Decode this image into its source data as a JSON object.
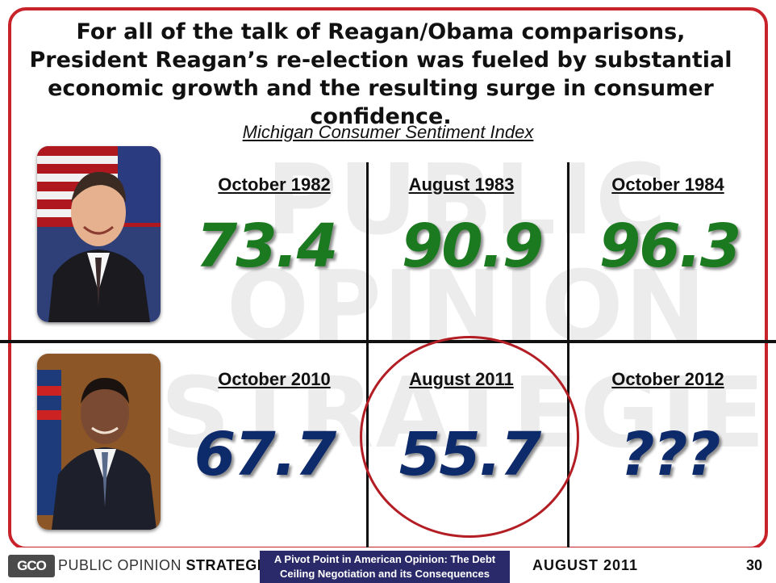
{
  "slide": {
    "headline": "For all of the talk of Reagan/Obama comparisons, President Reagan’s re-election was fueled by substantial economic growth and the resulting surge in consumer confidence.",
    "subtitle": "Michigan Consumer Sentiment Index",
    "watermark": "PUBLIC OPINION STRATEGIES"
  },
  "reagan": {
    "cells": [
      {
        "label": "October 1982",
        "value": "73.4"
      },
      {
        "label": "August 1983",
        "value": "90.9"
      },
      {
        "label": "October 1984",
        "value": "96.3"
      }
    ]
  },
  "obama": {
    "cells": [
      {
        "label": "October 2010",
        "value": "67.7"
      },
      {
        "label": "August 2011",
        "value": "55.7"
      },
      {
        "label": "October 2012",
        "value": "???"
      }
    ]
  },
  "footer": {
    "logo_text": "GCO",
    "brand_left": "PUBLIC OPINION",
    "brand_right": "STRATEGIES",
    "mid_line1": "A Pivot Point in American Opinion: The Debt",
    "mid_line2": "Ceiling Negotiation and its Consequences",
    "date": "AUGUST 2011",
    "page": "30"
  },
  "colors": {
    "frame": "#c8232a",
    "reagan_value": "#1b7a1f",
    "obama_value": "#0d2a6a",
    "circle": "#b31d24",
    "footer_band": "#2a2a6a"
  }
}
